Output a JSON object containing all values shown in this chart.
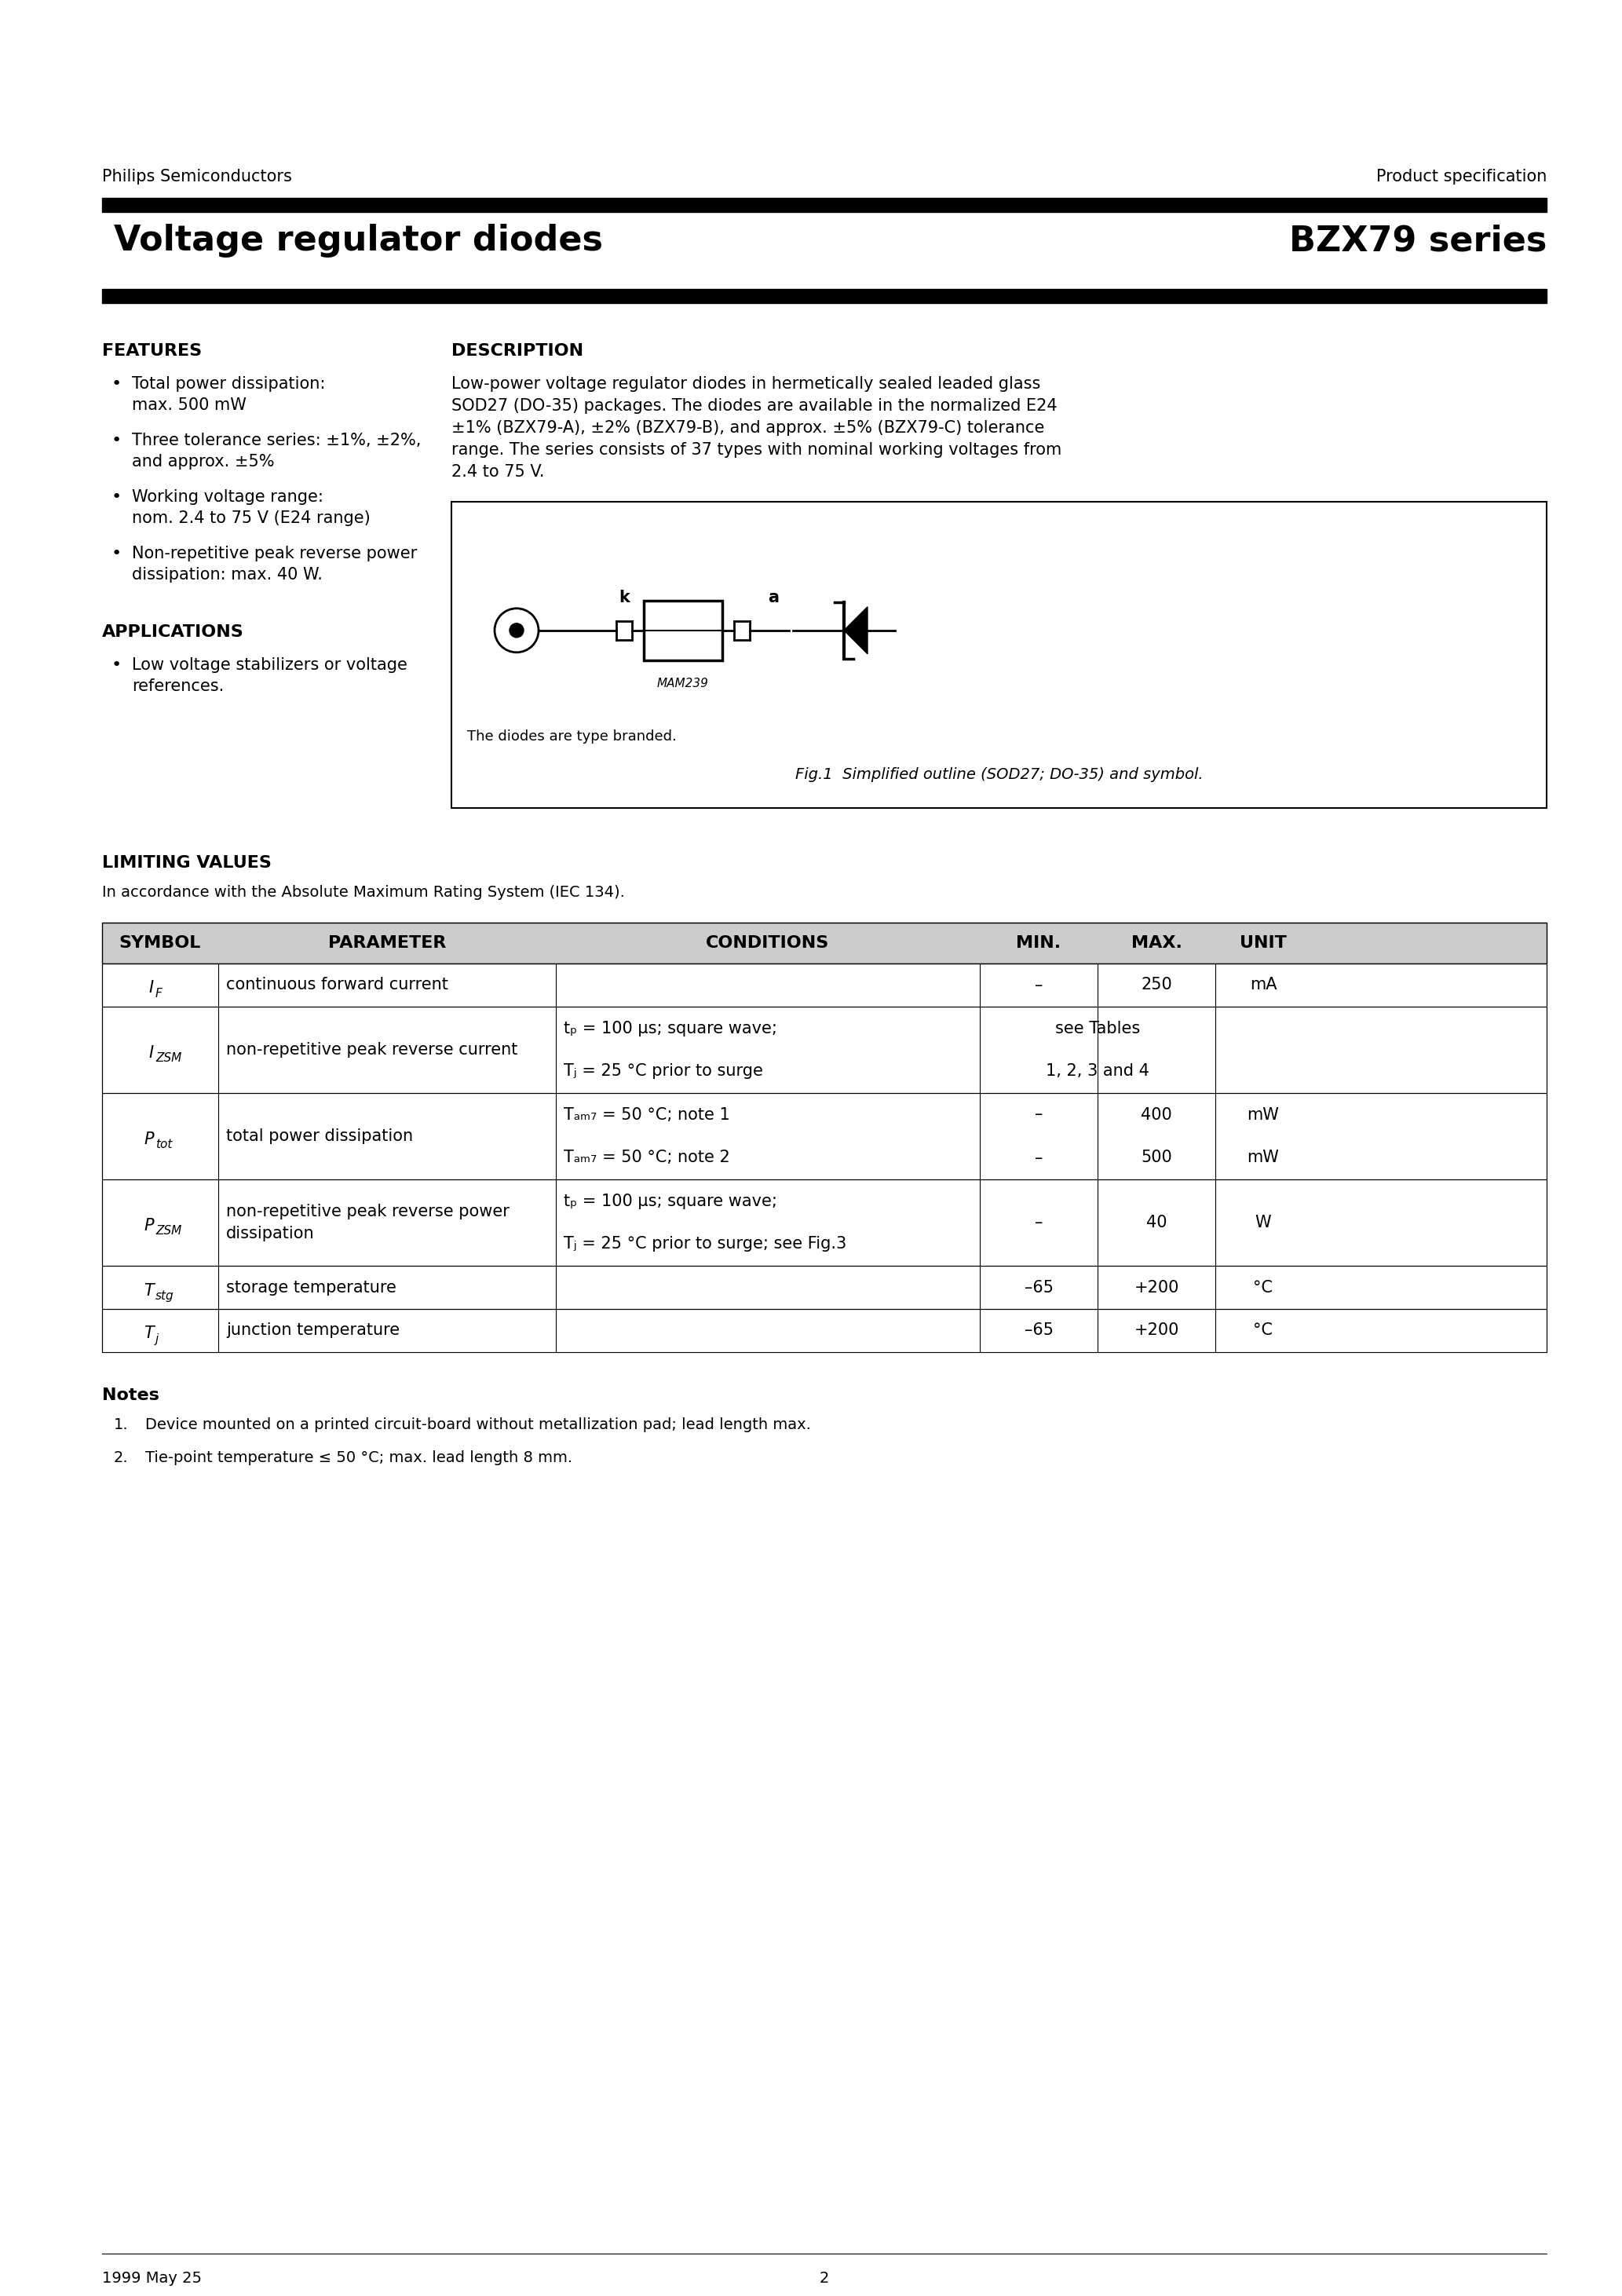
{
  "page_title_left": "Voltage regulator diodes",
  "page_title_right": "BZX79 series",
  "header_left": "Philips Semiconductors",
  "header_right": "Product specification",
  "features_title": "FEATURES",
  "features_bullets": [
    "Total power dissipation:\nmax. 500 mW",
    "Three tolerance series: ±1%, ±2%,\nand approx. ±5%",
    "Working voltage range:\nnom. 2.4 to 75 V (E24 range)",
    "Non-repetitive peak reverse power\ndissipation: max. 40 W."
  ],
  "applications_title": "APPLICATIONS",
  "applications_bullets": [
    "Low voltage stabilizers or voltage\nreferences."
  ],
  "description_title": "DESCRIPTION",
  "description_text": "Low-power voltage regulator diodes in hermetically sealed leaded glass\nSOD27 (DO-35) packages. The diodes are available in the normalized E24\n±1% (BZX79-A), ±2% (BZX79-B), and approx. ±5% (BZX79-C) tolerance\nrange. The series consists of 37 types with nominal working voltages from\n2.4 to 75 V.",
  "fig_caption_small": "The diodes are type branded.",
  "fig_caption": "Fig.1  Simplified outline (SOD27; DO-35) and symbol.",
  "fig_label_mam": "MAM239",
  "fig_label_k": "k",
  "fig_label_a": "a",
  "limiting_values_title": "LIMITING VALUES",
  "limiting_values_subtitle": "In accordance with the Absolute Maximum Rating System (IEC 134).",
  "table_headers": [
    "SYMBOL",
    "PARAMETER",
    "CONDITIONS",
    "MIN.",
    "MAX.",
    "UNIT"
  ],
  "notes_title": "Notes",
  "notes": [
    "Device mounted on a printed circuit-board without metallization pad; lead length max.",
    "Tie-point temperature ≤ 50 °C; max. lead length 8 mm."
  ],
  "footer_left": "1999 May 25",
  "footer_center": "2"
}
